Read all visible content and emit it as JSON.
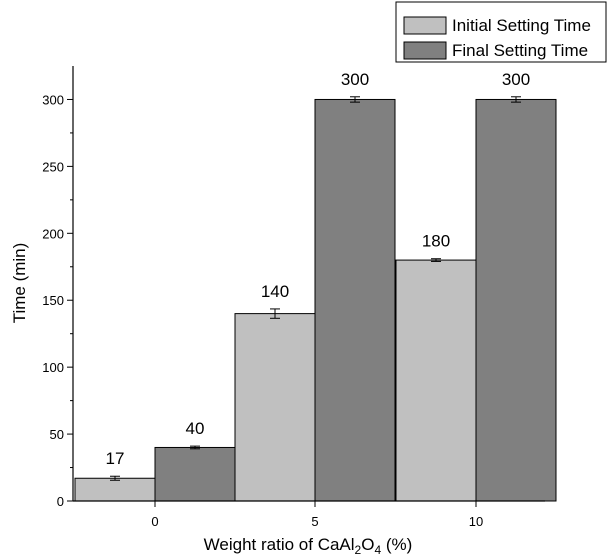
{
  "chart_data": {
    "type": "bar",
    "categories": [
      "0",
      "5",
      "10"
    ],
    "series": [
      {
        "name": "Initial Setting Time",
        "values": [
          17,
          140,
          180
        ],
        "errors": [
          1.5,
          3.5,
          1
        ],
        "labels": [
          "17",
          "140",
          "180"
        ],
        "color": "#c0c0c0"
      },
      {
        "name": "Final Setting Time",
        "values": [
          40,
          300,
          300
        ],
        "errors": [
          1,
          2,
          2
        ],
        "labels": [
          "40",
          "300",
          "300"
        ],
        "color": "#808080"
      }
    ],
    "xlabel_parts": [
      "Weight ratio of CaAl",
      "2",
      "O",
      "4",
      " (%)"
    ],
    "ylabel": "Time (min)",
    "ylim": [
      0,
      325
    ],
    "yticks": [
      "0",
      "50",
      "100",
      "150",
      "200",
      "250",
      "300"
    ],
    "legend_position": "top-right"
  }
}
